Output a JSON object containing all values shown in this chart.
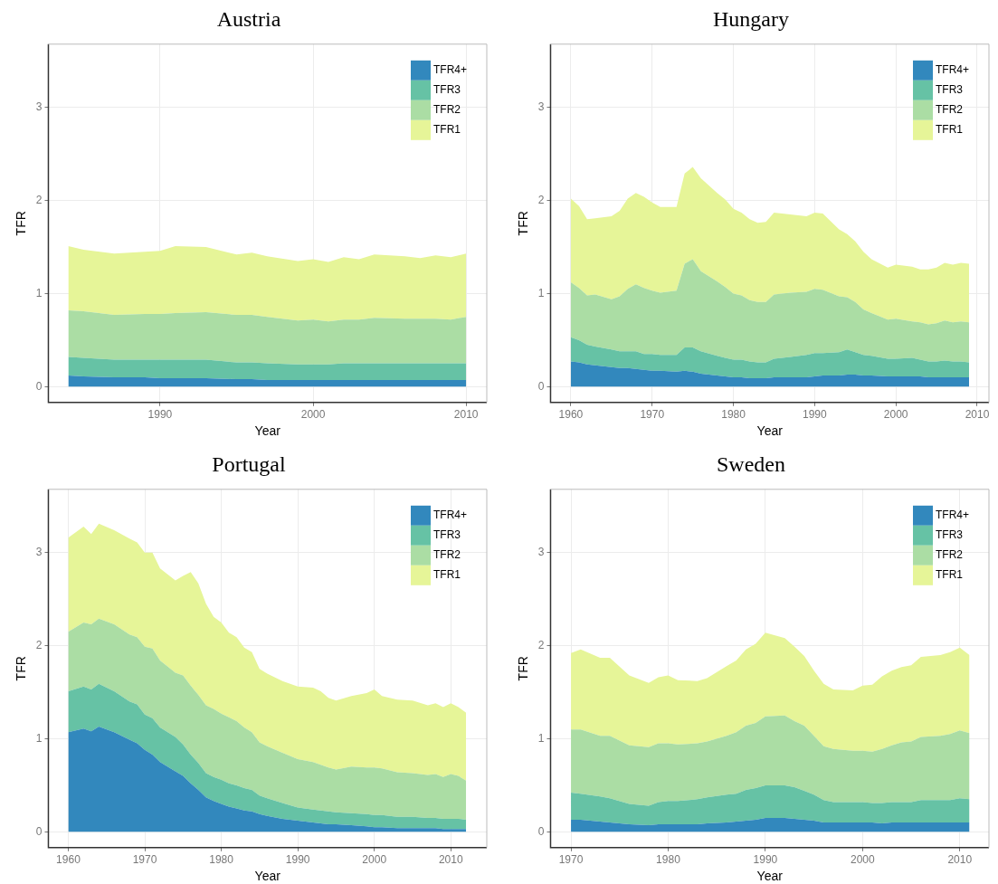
{
  "chart_data": [
    {
      "type": "area",
      "stacked": true,
      "title": "Austria",
      "xlabel": "Year",
      "ylabel": "TFR",
      "legend": "top right",
      "grid": true,
      "xlim": [
        1982.7,
        2011.35
      ],
      "xticks": [
        1990,
        2000,
        2010
      ],
      "ylim": [
        -0.17,
        3.68
      ],
      "yticks": [
        0,
        1,
        2,
        3
      ],
      "x": [
        1984,
        1985,
        1987,
        1989,
        1990,
        1991,
        1993,
        1995,
        1996,
        1997,
        1999,
        2000,
        2001,
        2002,
        2003,
        2004,
        2006,
        2007,
        2008,
        2009,
        2010
      ],
      "series": [
        {
          "name": "TFR4+",
          "color": "#3288bd",
          "values": [
            0.12,
            0.11,
            0.1,
            0.1,
            0.09,
            0.09,
            0.09,
            0.08,
            0.08,
            0.07,
            0.07,
            0.07,
            0.07,
            0.07,
            0.07,
            0.07,
            0.07,
            0.07,
            0.07,
            0.07,
            0.07
          ]
        },
        {
          "name": "TFR3",
          "color": "#66c2a5",
          "values": [
            0.2,
            0.2,
            0.19,
            0.19,
            0.2,
            0.2,
            0.2,
            0.18,
            0.18,
            0.18,
            0.17,
            0.17,
            0.17,
            0.18,
            0.18,
            0.18,
            0.18,
            0.18,
            0.18,
            0.18,
            0.18
          ]
        },
        {
          "name": "TFR2",
          "color": "#abdda4",
          "values": [
            0.5,
            0.5,
            0.48,
            0.49,
            0.49,
            0.5,
            0.51,
            0.51,
            0.51,
            0.5,
            0.47,
            0.48,
            0.46,
            0.47,
            0.47,
            0.49,
            0.48,
            0.48,
            0.48,
            0.47,
            0.5
          ]
        },
        {
          "name": "TFR1",
          "color": "#e6f598",
          "values": [
            0.69,
            0.66,
            0.66,
            0.67,
            0.68,
            0.72,
            0.7,
            0.65,
            0.67,
            0.65,
            0.64,
            0.65,
            0.64,
            0.67,
            0.65,
            0.68,
            0.67,
            0.65,
            0.68,
            0.67,
            0.68
          ]
        }
      ]
    },
    {
      "type": "area",
      "stacked": true,
      "title": "Hungary",
      "xlabel": "Year",
      "ylabel": "TFR",
      "legend": "top right",
      "grid": true,
      "xlim": [
        1957.5,
        2011.45
      ],
      "xticks": [
        1960,
        1970,
        1980,
        1990,
        2000,
        2010
      ],
      "ylim": [
        -0.17,
        3.68
      ],
      "yticks": [
        0,
        1,
        2,
        3
      ],
      "x": [
        1960,
        1961,
        1962,
        1963,
        1965,
        1966,
        1967,
        1968,
        1969,
        1970,
        1971,
        1973,
        1974,
        1975,
        1976,
        1978,
        1979,
        1980,
        1981,
        1982,
        1983,
        1984,
        1985,
        1987,
        1989,
        1990,
        1991,
        1993,
        1994,
        1995,
        1996,
        1997,
        1999,
        2000,
        2002,
        2003,
        2004,
        2005,
        2006,
        2007,
        2008,
        2009
      ],
      "series": [
        {
          "name": "TFR4+",
          "color": "#3288bd",
          "values": [
            0.27,
            0.26,
            0.24,
            0.23,
            0.21,
            0.2,
            0.2,
            0.19,
            0.18,
            0.17,
            0.17,
            0.16,
            0.17,
            0.16,
            0.14,
            0.12,
            0.11,
            0.1,
            0.1,
            0.09,
            0.09,
            0.09,
            0.1,
            0.1,
            0.1,
            0.11,
            0.12,
            0.12,
            0.13,
            0.13,
            0.12,
            0.12,
            0.11,
            0.11,
            0.11,
            0.11,
            0.1,
            0.1,
            0.1,
            0.1,
            0.1,
            0.1
          ]
        },
        {
          "name": "TFR3",
          "color": "#66c2a5",
          "values": [
            0.26,
            0.24,
            0.21,
            0.2,
            0.19,
            0.18,
            0.18,
            0.19,
            0.17,
            0.18,
            0.17,
            0.18,
            0.25,
            0.26,
            0.24,
            0.21,
            0.2,
            0.19,
            0.19,
            0.18,
            0.17,
            0.17,
            0.2,
            0.22,
            0.24,
            0.25,
            0.24,
            0.25,
            0.27,
            0.24,
            0.22,
            0.21,
            0.19,
            0.19,
            0.2,
            0.18,
            0.17,
            0.17,
            0.18,
            0.17,
            0.17,
            0.16
          ]
        },
        {
          "name": "TFR2",
          "color": "#abdda4",
          "values": [
            0.59,
            0.56,
            0.53,
            0.56,
            0.54,
            0.59,
            0.67,
            0.72,
            0.71,
            0.68,
            0.67,
            0.69,
            0.9,
            0.95,
            0.86,
            0.8,
            0.76,
            0.71,
            0.69,
            0.66,
            0.65,
            0.65,
            0.69,
            0.69,
            0.68,
            0.69,
            0.68,
            0.6,
            0.56,
            0.54,
            0.49,
            0.46,
            0.42,
            0.43,
            0.39,
            0.4,
            0.4,
            0.41,
            0.43,
            0.42,
            0.43,
            0.43
          ]
        },
        {
          "name": "TFR1",
          "color": "#e6f598",
          "values": [
            0.9,
            0.88,
            0.82,
            0.82,
            0.89,
            0.92,
            0.97,
            0.98,
            0.98,
            0.95,
            0.92,
            0.9,
            0.97,
            0.99,
            1.0,
            0.95,
            0.94,
            0.91,
            0.89,
            0.87,
            0.85,
            0.86,
            0.88,
            0.84,
            0.81,
            0.82,
            0.82,
            0.72,
            0.68,
            0.65,
            0.62,
            0.58,
            0.56,
            0.58,
            0.59,
            0.57,
            0.59,
            0.6,
            0.62,
            0.62,
            0.63,
            0.63
          ]
        }
      ]
    },
    {
      "type": "area",
      "stacked": true,
      "title": "Portugal",
      "xlabel": "Year",
      "ylabel": "TFR",
      "legend": "top right",
      "grid": true,
      "xlim": [
        1957.4,
        2014.7
      ],
      "xticks": [
        1960,
        1970,
        1980,
        1990,
        2000,
        2010
      ],
      "ylim": [
        -0.17,
        3.68
      ],
      "yticks": [
        0,
        1,
        2,
        3
      ],
      "x": [
        1960,
        1962,
        1963,
        1964,
        1966,
        1968,
        1969,
        1970,
        1971,
        1972,
        1974,
        1975,
        1976,
        1977,
        1978,
        1979,
        1980,
        1981,
        1982,
        1983,
        1984,
        1985,
        1986,
        1988,
        1990,
        1992,
        1993,
        1994,
        1995,
        1997,
        1999,
        2000,
        2001,
        2003,
        2005,
        2007,
        2008,
        2009,
        2010,
        2011,
        2012
      ],
      "series": [
        {
          "name": "TFR4+",
          "color": "#3288bd",
          "values": [
            1.07,
            1.11,
            1.08,
            1.13,
            1.07,
            0.99,
            0.95,
            0.88,
            0.83,
            0.75,
            0.65,
            0.6,
            0.52,
            0.45,
            0.37,
            0.33,
            0.3,
            0.27,
            0.25,
            0.23,
            0.22,
            0.19,
            0.17,
            0.14,
            0.12,
            0.1,
            0.09,
            0.08,
            0.08,
            0.07,
            0.06,
            0.05,
            0.05,
            0.04,
            0.04,
            0.04,
            0.04,
            0.03,
            0.03,
            0.03,
            0.03
          ]
        },
        {
          "name": "TFR3",
          "color": "#66c2a5",
          "values": [
            0.44,
            0.45,
            0.45,
            0.46,
            0.44,
            0.41,
            0.42,
            0.38,
            0.39,
            0.37,
            0.37,
            0.34,
            0.31,
            0.29,
            0.26,
            0.26,
            0.26,
            0.25,
            0.25,
            0.24,
            0.23,
            0.2,
            0.19,
            0.17,
            0.14,
            0.14,
            0.14,
            0.14,
            0.13,
            0.13,
            0.13,
            0.13,
            0.13,
            0.12,
            0.12,
            0.11,
            0.11,
            0.11,
            0.11,
            0.11,
            0.1
          ]
        },
        {
          "name": "TFR2",
          "color": "#abdda4",
          "values": [
            0.64,
            0.69,
            0.7,
            0.7,
            0.72,
            0.72,
            0.72,
            0.73,
            0.75,
            0.72,
            0.69,
            0.74,
            0.74,
            0.73,
            0.73,
            0.73,
            0.71,
            0.71,
            0.69,
            0.65,
            0.62,
            0.57,
            0.56,
            0.54,
            0.52,
            0.51,
            0.49,
            0.47,
            0.46,
            0.5,
            0.5,
            0.51,
            0.5,
            0.48,
            0.47,
            0.46,
            0.47,
            0.45,
            0.48,
            0.46,
            0.42
          ]
        },
        {
          "name": "TFR1",
          "color": "#e6f598",
          "values": [
            1.01,
            1.03,
            0.97,
            1.02,
            1.01,
            1.03,
            1.02,
            1.01,
            1.03,
            0.99,
            0.99,
            1.07,
            1.22,
            1.2,
            1.09,
            0.99,
            0.98,
            0.91,
            0.9,
            0.86,
            0.86,
            0.79,
            0.78,
            0.77,
            0.78,
            0.8,
            0.79,
            0.75,
            0.74,
            0.76,
            0.8,
            0.84,
            0.78,
            0.78,
            0.78,
            0.75,
            0.76,
            0.75,
            0.76,
            0.74,
            0.73
          ]
        }
      ]
    },
    {
      "type": "area",
      "stacked": true,
      "title": "Sweden",
      "xlabel": "Year",
      "ylabel": "TFR",
      "legend": "top right",
      "grid": true,
      "xlim": [
        1967.9,
        2013.0
      ],
      "xticks": [
        1970,
        1980,
        1990,
        2000,
        2010
      ],
      "ylim": [
        -0.17,
        3.68
      ],
      "yticks": [
        0,
        1,
        2,
        3
      ],
      "x": [
        1970,
        1971,
        1973,
        1974,
        1976,
        1978,
        1979,
        1980,
        1981,
        1983,
        1984,
        1986,
        1987,
        1988,
        1989,
        1990,
        1992,
        1993,
        1994,
        1995,
        1996,
        1997,
        1999,
        2000,
        2001,
        2002,
        2003,
        2004,
        2005,
        2006,
        2008,
        2009,
        2010,
        2011
      ],
      "series": [
        {
          "name": "TFR4+",
          "color": "#3288bd",
          "values": [
            0.13,
            0.13,
            0.11,
            0.1,
            0.08,
            0.07,
            0.08,
            0.08,
            0.08,
            0.08,
            0.09,
            0.1,
            0.11,
            0.12,
            0.13,
            0.15,
            0.15,
            0.14,
            0.13,
            0.12,
            0.1,
            0.1,
            0.1,
            0.1,
            0.1,
            0.09,
            0.1,
            0.1,
            0.1,
            0.1,
            0.1,
            0.1,
            0.1,
            0.1
          ]
        },
        {
          "name": "TFR3",
          "color": "#66c2a5",
          "values": [
            0.29,
            0.28,
            0.27,
            0.26,
            0.22,
            0.21,
            0.24,
            0.25,
            0.25,
            0.27,
            0.28,
            0.3,
            0.3,
            0.33,
            0.34,
            0.35,
            0.35,
            0.34,
            0.31,
            0.28,
            0.24,
            0.22,
            0.22,
            0.22,
            0.21,
            0.22,
            0.22,
            0.22,
            0.22,
            0.24,
            0.24,
            0.24,
            0.26,
            0.25
          ]
        },
        {
          "name": "TFR2",
          "color": "#abdda4",
          "values": [
            0.68,
            0.69,
            0.65,
            0.67,
            0.63,
            0.63,
            0.63,
            0.62,
            0.61,
            0.6,
            0.6,
            0.63,
            0.66,
            0.69,
            0.7,
            0.74,
            0.75,
            0.71,
            0.7,
            0.63,
            0.58,
            0.57,
            0.55,
            0.55,
            0.55,
            0.58,
            0.61,
            0.64,
            0.65,
            0.68,
            0.69,
            0.71,
            0.73,
            0.71
          ]
        },
        {
          "name": "TFR1",
          "color": "#e6f598",
          "values": [
            0.82,
            0.86,
            0.84,
            0.84,
            0.75,
            0.69,
            0.71,
            0.73,
            0.69,
            0.67,
            0.68,
            0.75,
            0.77,
            0.82,
            0.85,
            0.9,
            0.83,
            0.8,
            0.75,
            0.7,
            0.67,
            0.64,
            0.65,
            0.7,
            0.72,
            0.78,
            0.8,
            0.81,
            0.82,
            0.86,
            0.87,
            0.88,
            0.89,
            0.84
          ]
        }
      ]
    }
  ]
}
